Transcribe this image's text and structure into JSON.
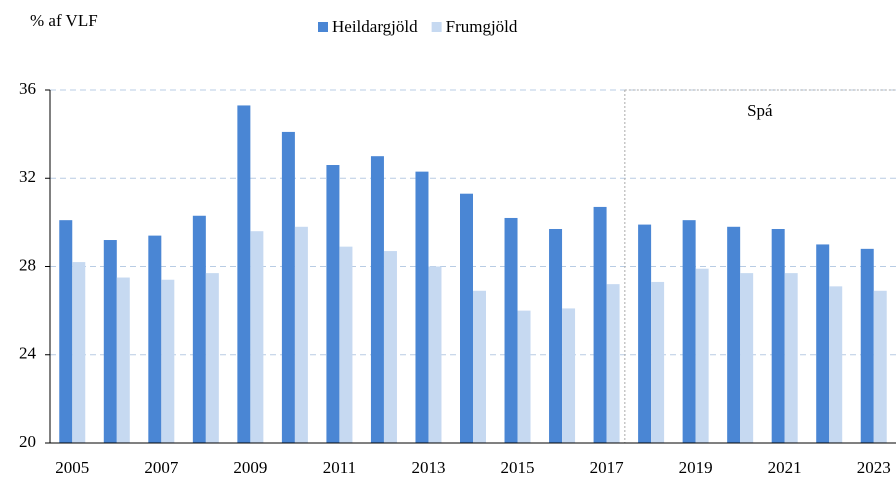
{
  "chart_data": {
    "type": "bar",
    "y_unit_label": "% af VLF",
    "annotation": "Spá",
    "categories": [
      "2005",
      null,
      "2007",
      null,
      "2009",
      null,
      "2011",
      null,
      "2013",
      null,
      "2015",
      null,
      "2017",
      null,
      "2019",
      null,
      "2021",
      null,
      "2023"
    ],
    "series": [
      {
        "name": "Heildargjöld",
        "color": "#4a86d4",
        "values": [
          30.1,
          29.2,
          29.4,
          30.3,
          35.3,
          34.1,
          32.6,
          33.0,
          32.3,
          31.3,
          30.2,
          29.7,
          30.7,
          29.9,
          30.1,
          29.8,
          29.7,
          29.0,
          28.8
        ]
      },
      {
        "name": "Frumgjöld",
        "color": "#c6d9f1",
        "values": [
          28.2,
          27.5,
          27.4,
          27.7,
          29.6,
          29.8,
          28.9,
          28.7,
          28.0,
          26.9,
          26.0,
          26.1,
          27.2,
          27.3,
          27.9,
          27.7,
          27.7,
          27.1,
          26.9
        ]
      }
    ],
    "ylim": [
      20,
      36
    ],
    "yticks": [
      20,
      24,
      28,
      32,
      36
    ],
    "grid": true,
    "legend": "top"
  }
}
